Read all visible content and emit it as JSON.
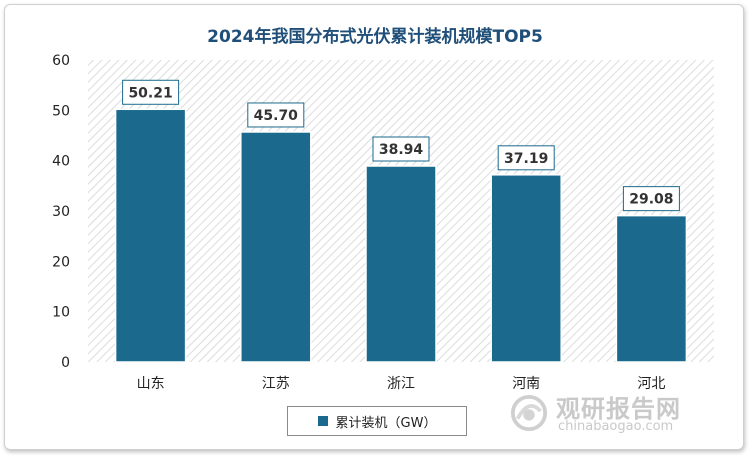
{
  "chart_data": {
    "type": "bar",
    "title": "2024年我国分布式光伏累计装机规模TOP5",
    "categories": [
      "山东",
      "江苏",
      "浙江",
      "河南",
      "河北"
    ],
    "series": [
      {
        "name": "累计装机（GW）",
        "values": [
          50.21,
          45.7,
          38.94,
          37.19,
          29.08
        ],
        "color": "#1b6a8e"
      }
    ],
    "value_labels": [
      "50.21",
      "45.70",
      "38.94",
      "37.19",
      "29.08"
    ],
    "y_ticks": [
      "0",
      "10",
      "20",
      "30",
      "40",
      "50",
      "60"
    ],
    "ylim": [
      0,
      60
    ],
    "legend_position": "bottom-center",
    "grid": false
  },
  "legend": {
    "label": "累计装机（GW）"
  },
  "watermark": {
    "cn": "观研报告网",
    "en": "chinabaogao.com"
  },
  "colors": {
    "bar": "#1b6a8e",
    "title": "#1f4e79",
    "label_border": "#1b6a8e"
  }
}
